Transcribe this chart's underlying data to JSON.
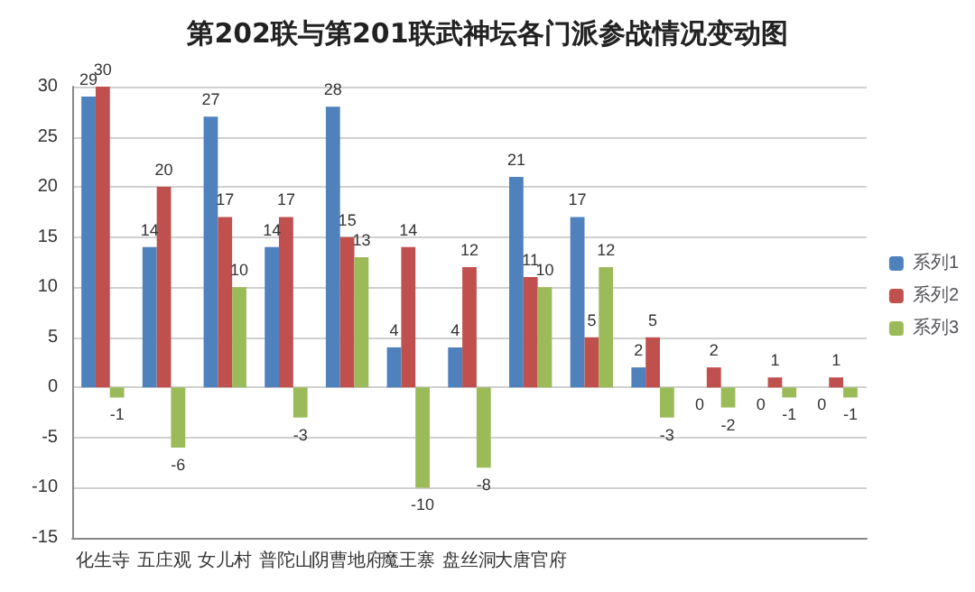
{
  "chart_data": {
    "type": "bar",
    "title": "第202联与第201联武神坛各门派参战情况变动图",
    "categories": [
      "化生寺",
      "五庄观",
      "女儿村",
      "普陀山",
      "阴曹地府",
      "魔王寨",
      "盘丝洞",
      "大唐官府",
      null,
      null,
      null,
      null,
      null
    ],
    "series": [
      {
        "name": "系列1",
        "color": "#4f81bd",
        "values": [
          29,
          14,
          27,
          14,
          28,
          4,
          4,
          21,
          17,
          2,
          0,
          0,
          0
        ]
      },
      {
        "name": "系列2",
        "color": "#c0504d",
        "values": [
          30,
          20,
          17,
          17,
          15,
          14,
          12,
          11,
          5,
          5,
          2,
          1,
          1
        ]
      },
      {
        "name": "系列3",
        "color": "#9bbb59",
        "values": [
          -1,
          -6,
          10,
          -3,
          13,
          -10,
          -8,
          10,
          12,
          -3,
          -2,
          -1,
          -1
        ]
      }
    ],
    "ylim": [
      -15,
      30
    ],
    "yticks": [
      -15,
      -10,
      -5,
      0,
      5,
      10,
      15,
      20,
      25,
      30
    ],
    "grid": "y",
    "legend": "right",
    "data_labels": true
  }
}
